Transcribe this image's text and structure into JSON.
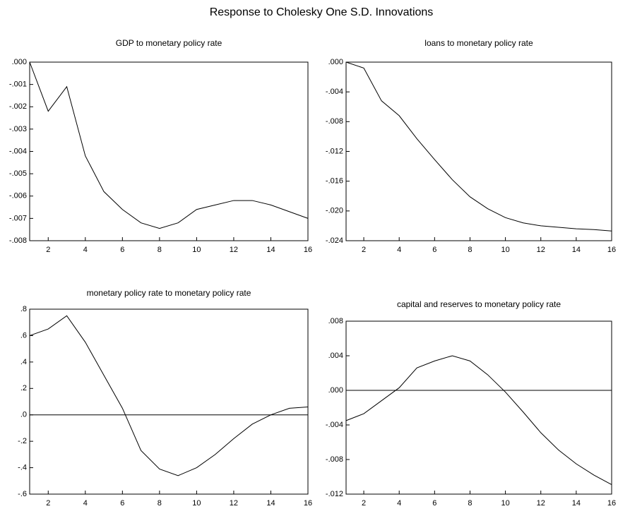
{
  "title": "Response to Cholesky One S.D. Innovations",
  "chart_data": [
    {
      "type": "line",
      "title": "GDP to monetary policy rate",
      "x": [
        1,
        2,
        3,
        4,
        5,
        6,
        7,
        8,
        9,
        10,
        11,
        12,
        13,
        14,
        15,
        16
      ],
      "series": [
        {
          "color": "#000000",
          "values": [
            0.0,
            -0.0022,
            -0.0011,
            -0.0042,
            -0.0058,
            -0.0066,
            -0.0072,
            -0.00745,
            -0.0072,
            -0.0066,
            -0.0064,
            -0.0062,
            -0.0062,
            -0.0064,
            -0.0067,
            -0.007
          ]
        }
      ],
      "xlim": [
        1,
        16
      ],
      "xticks": [
        2,
        4,
        6,
        8,
        10,
        12,
        14,
        16
      ],
      "ylim": [
        -0.008,
        0
      ],
      "yticks": [
        {
          "value": 0,
          "label": ".000"
        },
        {
          "value": -0.001,
          "label": "-.001"
        },
        {
          "value": -0.002,
          "label": "-.002"
        },
        {
          "value": -0.003,
          "label": "-.003"
        },
        {
          "value": -0.004,
          "label": "-.004"
        },
        {
          "value": -0.005,
          "label": "-.005"
        },
        {
          "value": -0.006,
          "label": "-.006"
        },
        {
          "value": -0.007,
          "label": "-.007"
        },
        {
          "value": -0.008,
          "label": "-.008"
        }
      ],
      "zero_line": false
    },
    {
      "type": "line",
      "title": "loans to monetary policy rate",
      "x": [
        1,
        2,
        3,
        4,
        5,
        6,
        7,
        8,
        9,
        10,
        11,
        12,
        13,
        14,
        15,
        16
      ],
      "series": [
        {
          "color": "#000000",
          "values": [
            0.0,
            -0.0008,
            -0.0052,
            -0.0072,
            -0.0103,
            -0.0131,
            -0.0158,
            -0.0181,
            -0.0197,
            -0.0209,
            -0.0216,
            -0.022,
            -0.0222,
            -0.0224,
            -0.0225,
            -0.0227
          ]
        }
      ],
      "xlim": [
        1,
        16
      ],
      "xticks": [
        2,
        4,
        6,
        8,
        10,
        12,
        14,
        16
      ],
      "ylim": [
        -0.024,
        0
      ],
      "yticks": [
        {
          "value": 0,
          "label": ".000"
        },
        {
          "value": -0.004,
          "label": "-.004"
        },
        {
          "value": -0.008,
          "label": "-.008"
        },
        {
          "value": -0.012,
          "label": "-.012"
        },
        {
          "value": -0.016,
          "label": "-.016"
        },
        {
          "value": -0.02,
          "label": "-.020"
        },
        {
          "value": -0.024,
          "label": "-.024"
        }
      ],
      "zero_line": false
    },
    {
      "type": "line",
      "title": "monetary policy rate to monetary policy rate",
      "x": [
        1,
        2,
        3,
        4,
        5,
        6,
        7,
        8,
        9,
        10,
        11,
        12,
        13,
        14,
        15,
        16
      ],
      "series": [
        {
          "color": "#000000",
          "values": [
            0.6,
            0.65,
            0.75,
            0.55,
            0.3,
            0.05,
            -0.27,
            -0.41,
            -0.46,
            -0.4,
            -0.3,
            -0.18,
            -0.07,
            0.0,
            0.05,
            0.06
          ]
        }
      ],
      "xlim": [
        1,
        16
      ],
      "xticks": [
        2,
        4,
        6,
        8,
        10,
        12,
        14,
        16
      ],
      "ylim": [
        -0.6,
        0.8
      ],
      "yticks": [
        {
          "value": 0.8,
          "label": ".8"
        },
        {
          "value": 0.6,
          "label": ".6"
        },
        {
          "value": 0.4,
          "label": ".4"
        },
        {
          "value": 0.2,
          "label": ".2"
        },
        {
          "value": 0,
          "label": ".0"
        },
        {
          "value": -0.2,
          "label": "-.2"
        },
        {
          "value": -0.4,
          "label": "-.4"
        },
        {
          "value": -0.6,
          "label": "-.6"
        }
      ],
      "zero_line": true
    },
    {
      "type": "line",
      "title": "capital and reserves to monetary policy rate",
      "x": [
        1,
        2,
        3,
        4,
        5,
        6,
        7,
        8,
        9,
        10,
        11,
        12,
        13,
        14,
        15,
        16
      ],
      "series": [
        {
          "color": "#000000",
          "values": [
            -0.0035,
            -0.0027,
            -0.0012,
            0.0003,
            0.0026,
            0.0034,
            0.004,
            0.0034,
            0.0018,
            -0.0002,
            -0.0025,
            -0.0049,
            -0.0069,
            -0.0085,
            -0.0098,
            -0.0109
          ]
        }
      ],
      "xlim": [
        1,
        16
      ],
      "xticks": [
        2,
        4,
        6,
        8,
        10,
        12,
        14,
        16
      ],
      "ylim": [
        -0.012,
        0.008
      ],
      "yticks": [
        {
          "value": 0.008,
          "label": ".008"
        },
        {
          "value": 0.004,
          "label": ".004"
        },
        {
          "value": 0,
          "label": ".000"
        },
        {
          "value": -0.004,
          "label": "-.004"
        },
        {
          "value": -0.008,
          "label": "-.008"
        },
        {
          "value": -0.012,
          "label": "-.012"
        }
      ],
      "zero_line": true
    }
  ]
}
